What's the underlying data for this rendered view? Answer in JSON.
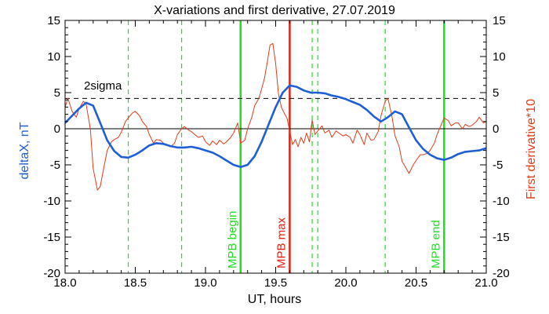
{
  "chart_data": {
    "type": "line",
    "title": "X-variations and first derivative, 27.07.2019",
    "xlabel": "UT, hours",
    "ylabel_left": "deltaX, nT",
    "ylabel_right": "First derivative*10",
    "xlim": [
      18.0,
      21.0
    ],
    "ylim_left": [
      -20,
      15
    ],
    "ylim_right": [
      -20,
      15
    ],
    "x_ticks": [
      "18.0",
      "18.5",
      "19.0",
      "19.5",
      "20.0",
      "20.5",
      "21.0"
    ],
    "y_ticks_left": [
      "-20",
      "-15",
      "-10",
      "-5",
      "0",
      "5",
      "10",
      "15"
    ],
    "y_ticks_right": [
      "-20",
      "-15",
      "-10",
      "-5",
      "0",
      "5",
      "10",
      "15"
    ],
    "colors": {
      "deltax": "#1f5fd6",
      "derivative": "#e03c1a",
      "mpb_green": "#22dd22",
      "mpb_red": "#e02010",
      "axis": "#000000"
    },
    "sigma_level": {
      "value": 4.2,
      "label": "2sigma"
    },
    "zero_line": 0,
    "series": [
      {
        "key": "deltax",
        "x": [
          18.0,
          18.05,
          18.1,
          18.15,
          18.2,
          18.25,
          18.3,
          18.35,
          18.4,
          18.45,
          18.5,
          18.55,
          18.6,
          18.65,
          18.7,
          18.75,
          18.8,
          18.85,
          18.9,
          18.95,
          19.0,
          19.05,
          19.1,
          19.15,
          19.2,
          19.25,
          19.3,
          19.35,
          19.4,
          19.45,
          19.5,
          19.55,
          19.6,
          19.65,
          19.7,
          19.75,
          19.8,
          19.85,
          19.9,
          19.95,
          20.0,
          20.05,
          20.1,
          20.15,
          20.2,
          20.25,
          20.3,
          20.35,
          20.4,
          20.45,
          20.5,
          20.55,
          20.6,
          20.65,
          20.7,
          20.75,
          20.8,
          20.85,
          20.9,
          20.95,
          21.0
        ],
        "y": [
          0.8,
          1.8,
          2.8,
          3.6,
          3.2,
          0.8,
          -1.6,
          -3.1,
          -3.9,
          -4.0,
          -3.6,
          -3.0,
          -2.3,
          -2.0,
          -2.1,
          -2.4,
          -2.6,
          -2.6,
          -2.5,
          -2.7,
          -3.0,
          -3.3,
          -3.8,
          -4.4,
          -5.0,
          -5.3,
          -5.0,
          -3.8,
          -1.8,
          0.6,
          3.0,
          5.0,
          6.0,
          5.8,
          5.3,
          5.0,
          5.0,
          4.9,
          4.6,
          4.4,
          4.1,
          3.7,
          3.3,
          2.6,
          1.7,
          1.0,
          1.6,
          2.4,
          2.0,
          0.2,
          -1.6,
          -2.8,
          -3.6,
          -4.1,
          -4.3,
          -4.0,
          -3.5,
          -3.2,
          -3.1,
          -3.0,
          -2.7
        ]
      },
      {
        "key": "derivative",
        "x": [
          18.0,
          18.02,
          18.05,
          18.08,
          18.1,
          18.13,
          18.15,
          18.18,
          18.2,
          18.23,
          18.25,
          18.28,
          18.3,
          18.33,
          18.35,
          18.38,
          18.4,
          18.43,
          18.45,
          18.48,
          18.5,
          18.53,
          18.55,
          18.58,
          18.6,
          18.63,
          18.65,
          18.68,
          18.7,
          18.73,
          18.75,
          18.78,
          18.8,
          18.83,
          18.85,
          18.88,
          18.9,
          18.93,
          18.95,
          18.98,
          19.0,
          19.03,
          19.05,
          19.08,
          19.1,
          19.13,
          19.15,
          19.18,
          19.2,
          19.23,
          19.25,
          19.28,
          19.3,
          19.33,
          19.35,
          19.38,
          19.4,
          19.42,
          19.44,
          19.46,
          19.48,
          19.5,
          19.52,
          19.54,
          19.56,
          19.58,
          19.6,
          19.62,
          19.64,
          19.66,
          19.68,
          19.7,
          19.72,
          19.74,
          19.76,
          19.78,
          19.8,
          19.83,
          19.85,
          19.88,
          19.9,
          19.93,
          19.95,
          19.98,
          20.0,
          20.03,
          20.05,
          20.08,
          20.1,
          20.13,
          20.15,
          20.18,
          20.2,
          20.23,
          20.25,
          20.28,
          20.3,
          20.33,
          20.35,
          20.38,
          20.4,
          20.43,
          20.45,
          20.48,
          20.5,
          20.53,
          20.55,
          20.58,
          20.6,
          20.63,
          20.65,
          20.68,
          20.7,
          20.73,
          20.75,
          20.78,
          20.8,
          20.83,
          20.85,
          20.88,
          20.9,
          20.93,
          20.95,
          20.98,
          21.0
        ],
        "y": [
          3.0,
          4.2,
          2.4,
          1.6,
          2.8,
          3.8,
          3.4,
          0.0,
          -5.5,
          -8.5,
          -8.0,
          -5.0,
          -3.0,
          -1.8,
          -1.5,
          -1.2,
          -0.5,
          1.0,
          1.5,
          2.2,
          2.4,
          1.8,
          1.0,
          0.3,
          -0.8,
          -2.0,
          -1.5,
          -1.6,
          -2.0,
          -2.3,
          -2.5,
          -2.0,
          -0.8,
          0.0,
          0.3,
          -0.2,
          -0.4,
          -0.9,
          -1.2,
          -1.0,
          -1.8,
          -2.3,
          -1.7,
          -2.2,
          -1.6,
          -2.1,
          -1.8,
          -1.2,
          -0.6,
          0.8,
          -2.0,
          -1.6,
          0.0,
          1.6,
          3.2,
          4.2,
          5.5,
          7.0,
          9.2,
          11.6,
          11.8,
          9.0,
          4.8,
          3.0,
          2.2,
          1.5,
          -0.3,
          -2.2,
          -1.5,
          -2.5,
          -1.2,
          -2.0,
          -0.6,
          -1.8,
          1.2,
          -0.8,
          -0.3,
          0.4,
          -0.6,
          -0.2,
          -1.2,
          -0.3,
          -0.6,
          -1.0,
          -0.8,
          -1.2,
          -2.0,
          -0.2,
          -0.8,
          -2.2,
          -0.6,
          -1.6,
          -1.5,
          -0.4,
          1.8,
          3.8,
          4.2,
          1.5,
          -1.0,
          -2.5,
          -4.5,
          -5.5,
          -6.2,
          -5.0,
          -4.4,
          -3.6,
          -3.6,
          -3.4,
          -3.0,
          -2.0,
          -0.8,
          0.6,
          1.5,
          1.1,
          0.4,
          0.8,
          0.8,
          0.0,
          0.6,
          0.3,
          0.5,
          1.0,
          1.6,
          0.8,
          1.0
        ]
      }
    ],
    "vertical_markers": [
      {
        "x": 18.45,
        "style": "dashed",
        "color_key": "mpb_green",
        "label": ""
      },
      {
        "x": 18.83,
        "style": "dashed",
        "color_key": "mpb_green",
        "label": ""
      },
      {
        "x": 19.25,
        "style": "solid",
        "color_key": "mpb_green",
        "label": "MPB begin"
      },
      {
        "x": 19.6,
        "style": "solid",
        "color_key": "mpb_red",
        "label": "MPB max"
      },
      {
        "x": 19.76,
        "style": "dashed",
        "color_key": "mpb_green",
        "label": ""
      },
      {
        "x": 19.8,
        "style": "dashed",
        "color_key": "mpb_green",
        "label": ""
      },
      {
        "x": 20.28,
        "style": "dashed",
        "color_key": "mpb_green",
        "label": ""
      },
      {
        "x": 20.7,
        "style": "solid",
        "color_key": "mpb_green",
        "label": "MPB end"
      }
    ]
  }
}
